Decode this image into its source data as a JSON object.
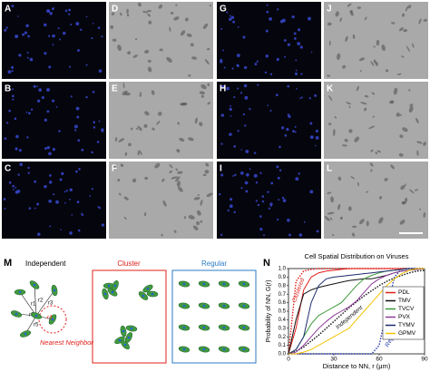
{
  "panels": [
    {
      "label": "A"
    },
    {
      "label": "B"
    },
    {
      "label": "C"
    },
    {
      "label": "D"
    },
    {
      "label": "E"
    },
    {
      "label": "F"
    },
    {
      "label": "G"
    },
    {
      "label": "H"
    },
    {
      "label": "I"
    },
    {
      "label": "J"
    },
    {
      "label": "K"
    },
    {
      "label": "L"
    }
  ],
  "diagram_m": {
    "label": "M",
    "independent": "Independent",
    "radii": [
      "r1",
      "r2",
      "r3",
      "r4",
      "r5",
      "r6"
    ],
    "nearest": "Nearest Neighbor",
    "cluster": "Cluster",
    "regular": "Regular"
  },
  "chart_data": {
    "type": "line",
    "label": "N",
    "title": "Cell Spatial Distribution on Viruses",
    "x_label": "Distance to NN, r (μm)",
    "y_label": "Probability of NN, G(r)",
    "x": [
      0,
      5,
      10,
      15,
      20,
      25,
      30,
      35,
      40,
      45,
      50,
      55,
      60,
      65,
      70,
      75,
      80,
      85,
      90
    ],
    "xlim": [
      0,
      90
    ],
    "xticks": [
      0,
      30,
      60,
      90
    ],
    "ylim": [
      0,
      1
    ],
    "yticks": [
      {
        "value": 0,
        "label": "0.0"
      },
      0.1,
      0.2,
      0.3,
      0.4,
      0.5,
      0.6,
      0.7,
      0.8,
      0.9,
      {
        "value": 1,
        "label": "1.0"
      }
    ],
    "legend": "right",
    "series": [
      {
        "name": "PDL",
        "color": "#e0201b",
        "values": [
          0,
          0.3,
          0.75,
          0.9,
          0.95,
          0.97,
          0.98,
          0.99,
          1,
          1,
          1,
          1,
          1,
          1,
          1,
          1,
          1,
          1,
          1
        ]
      },
      {
        "name": "TMV",
        "color": "#111111",
        "values": [
          0,
          0.4,
          0.7,
          0.75,
          0.78,
          0.8,
          0.82,
          0.84,
          0.86,
          0.87,
          0.88,
          0.88,
          0.9,
          0.92,
          0.95,
          0.97,
          0.98,
          0.99,
          1
        ]
      },
      {
        "name": "TVCV",
        "color": "#3a9a3a",
        "values": [
          0,
          0.05,
          0.2,
          0.35,
          0.45,
          0.5,
          0.55,
          0.6,
          0.7,
          0.8,
          0.88,
          0.92,
          0.95,
          0.97,
          0.98,
          0.99,
          1,
          1,
          1
        ]
      },
      {
        "name": "PVX",
        "color": "#8e3a9a",
        "values": [
          0,
          0.02,
          0.1,
          0.2,
          0.3,
          0.38,
          0.45,
          0.5,
          0.55,
          0.62,
          0.72,
          0.82,
          0.88,
          0.92,
          0.95,
          0.97,
          0.98,
          0.99,
          1
        ]
      },
      {
        "name": "TYMV",
        "color": "#1c2a6e",
        "values": [
          0,
          0.05,
          0.2,
          0.6,
          0.8,
          0.88,
          0.9,
          0.91,
          0.92,
          0.93,
          0.94,
          0.95,
          0.96,
          0.97,
          0.98,
          0.99,
          1,
          1,
          1
        ]
      },
      {
        "name": "GPMV",
        "color": "#f2c300",
        "values": [
          0,
          0,
          0.02,
          0.05,
          0.1,
          0.15,
          0.2,
          0.25,
          0.3,
          0.4,
          0.5,
          0.6,
          0.7,
          0.8,
          0.88,
          0.94,
          0.98,
          1,
          1
        ]
      }
    ],
    "reference_curves": [
      {
        "name": "Clustered",
        "color": "#e0201b",
        "values": [
          0,
          0.85,
          0.97,
          0.99,
          1,
          1,
          1,
          1,
          1,
          1,
          1,
          1,
          1,
          1,
          1,
          1,
          1,
          1,
          1
        ]
      },
      {
        "name": "Independent",
        "color": "#111111",
        "values": [
          0,
          0.03,
          0.08,
          0.15,
          0.22,
          0.3,
          0.38,
          0.46,
          0.54,
          0.61,
          0.68,
          0.74,
          0.8,
          0.85,
          0.89,
          0.92,
          0.95,
          0.97,
          0.98
        ]
      },
      {
        "name": "Regular",
        "color": "#2b3fb0",
        "values": [
          0,
          0,
          0,
          0,
          0,
          0,
          0,
          0,
          0,
          0,
          0,
          0,
          0.1,
          0.5,
          0.9,
          1,
          1,
          1,
          1
        ]
      }
    ]
  }
}
